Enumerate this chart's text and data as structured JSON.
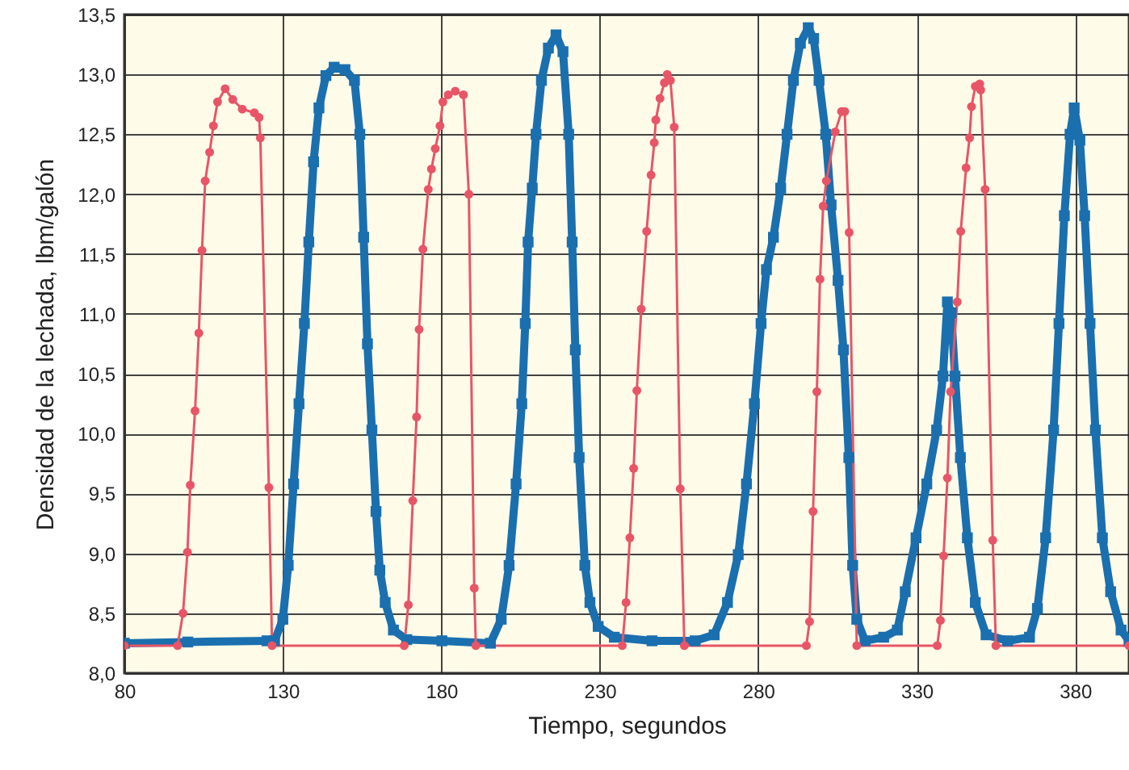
{
  "chart_data": {
    "type": "line",
    "xlabel": "Tiempo, segundos",
    "ylabel": "Densidad de la lechada, lbm/galón",
    "xlim": [
      80,
      397
    ],
    "xticks": [
      80,
      130,
      180,
      230,
      280,
      330,
      380
    ],
    "ylim": [
      8.0,
      13.5
    ],
    "yticks": [
      {
        "value": 8.0,
        "label": "8,0"
      },
      {
        "value": 8.5,
        "label": "8,5"
      },
      {
        "value": 9.0,
        "label": "9,0"
      },
      {
        "value": 9.5,
        "label": "9,5"
      },
      {
        "value": 10.0,
        "label": "10,0"
      },
      {
        "value": 10.5,
        "label": "10,5"
      },
      {
        "value": 11.0,
        "label": "11,0"
      },
      {
        "value": 11.5,
        "label": "11,5"
      },
      {
        "value": 12.0,
        "label": "12,0"
      },
      {
        "value": 12.5,
        "label": "12,5"
      },
      {
        "value": 13.0,
        "label": "13,0"
      },
      {
        "value": 13.5,
        "label": "13,5"
      }
    ],
    "grid": true,
    "series": [
      {
        "color": "#1a6faf",
        "marker": "square",
        "x": [
          80,
          100,
          125,
          127.4,
          130,
          131.7,
          133.4,
          135.1,
          136.8,
          138.2,
          139.7,
          141.4,
          143.6,
          146.2,
          149.6,
          152.6,
          154.3,
          155.5,
          156.7,
          158.1,
          159.4,
          160.6,
          162.3,
          164.9,
          169.1,
          180.2,
          195.5,
          198.9,
          201.4,
          203.6,
          205.4,
          206.5,
          207.4,
          208.7,
          209.9,
          211.6,
          213.8,
          216.2,
          218.4,
          220.2,
          221.3,
          222.3,
          223.5,
          225.3,
          226.9,
          229.5,
          234.6,
          246.5,
          260.1,
          266.1,
          270.3,
          273.7,
          276.3,
          278.8,
          280.9,
          282.6,
          284.8,
          287.1,
          289.1,
          291.1,
          293.3,
          295.8,
          297.5,
          299.2,
          301.3,
          303.0,
          305.2,
          306.9,
          308.6,
          309.8,
          311.1,
          313.7,
          319.6,
          323.9,
          326.4,
          329.8,
          333.2,
          336.3,
          338.3,
          339.7,
          340.9,
          342.1,
          343.8,
          346.0,
          348.5,
          351.9,
          358.7,
          365.6,
          368.1,
          370.7,
          373.2,
          374.9,
          376.6,
          378.4,
          379.7,
          381.5,
          383.0,
          384.7,
          386.4,
          388.6,
          391.2,
          394.5,
          397
        ],
        "values": [
          8.25,
          8.26,
          8.27,
          8.27,
          8.45,
          8.9,
          9.58,
          10.25,
          10.92,
          11.6,
          12.27,
          12.72,
          12.99,
          13.06,
          13.04,
          12.95,
          12.5,
          11.64,
          10.75,
          10.03,
          9.35,
          8.86,
          8.59,
          8.36,
          8.28,
          8.27,
          8.25,
          8.45,
          8.9,
          9.58,
          10.25,
          10.92,
          11.6,
          12.05,
          12.5,
          12.95,
          13.22,
          13.33,
          13.19,
          12.5,
          11.6,
          10.7,
          9.8,
          8.9,
          8.59,
          8.39,
          8.3,
          8.27,
          8.27,
          8.32,
          8.59,
          8.99,
          9.58,
          10.25,
          10.92,
          11.37,
          11.64,
          12.05,
          12.5,
          12.95,
          13.26,
          13.39,
          13.3,
          12.95,
          12.5,
          11.91,
          11.28,
          10.7,
          9.8,
          8.9,
          8.45,
          8.27,
          8.3,
          8.36,
          8.68,
          9.13,
          9.58,
          10.03,
          10.48,
          11.1,
          11.01,
          10.48,
          9.8,
          9.13,
          8.59,
          8.32,
          8.27,
          8.3,
          8.54,
          9.13,
          10.03,
          10.92,
          11.82,
          12.5,
          12.72,
          12.45,
          11.82,
          10.92,
          10.03,
          9.13,
          8.68,
          8.36,
          8.27
        ]
      },
      {
        "color": "#e85566",
        "marker": "circle",
        "x": [
          80,
          96.8,
          98.5,
          99.9,
          100.8,
          102.3,
          103.5,
          104.5,
          105.5,
          106.9,
          108.1,
          109.4,
          111.8,
          114.2,
          117.2,
          121,
          122.5,
          122.9,
          125.6,
          126.6,
          168.3,
          169.6,
          171.0,
          172.2,
          173.0,
          174.2,
          175.9,
          176.9,
          178.1,
          179.6,
          180.5,
          182.2,
          184.4,
          187.0,
          188.7,
          190.4,
          190.9,
          237.1,
          238.3,
          239.5,
          240.7,
          241.7,
          243.1,
          244.8,
          246.2,
          247.2,
          247.7,
          249.0,
          250.4,
          251.3,
          252.3,
          253.5,
          255.4,
          256.7,
          295.2,
          296.2,
          297.3,
          298.5,
          299.5,
          300.5,
          301.5,
          304.3,
          306.3,
          307.3,
          308.7,
          311.1,
          336.5,
          337.5,
          338.5,
          339.7,
          340.7,
          342.8,
          343.9,
          345.6,
          346.7,
          347.3,
          348.5,
          349.9,
          350.2,
          351.6,
          354.0,
          355,
          397
        ],
        "values": [
          8.23,
          8.23,
          8.5,
          9.01,
          9.57,
          10.19,
          10.84,
          11.53,
          12.11,
          12.35,
          12.57,
          12.77,
          12.88,
          12.79,
          12.71,
          12.68,
          12.64,
          12.47,
          9.55,
          8.23,
          8.23,
          8.57,
          9.44,
          10.14,
          10.87,
          11.54,
          12.04,
          12.21,
          12.38,
          12.57,
          12.77,
          12.83,
          12.86,
          12.83,
          12.0,
          8.71,
          8.23,
          8.23,
          8.59,
          9.13,
          9.71,
          10.36,
          11.04,
          11.69,
          12.16,
          12.43,
          12.62,
          12.8,
          12.93,
          13.0,
          12.95,
          12.56,
          9.54,
          8.23,
          8.23,
          8.43,
          9.35,
          10.35,
          11.29,
          11.9,
          12.11,
          12.52,
          12.69,
          12.69,
          11.68,
          8.23,
          8.23,
          8.44,
          8.98,
          9.63,
          10.35,
          11.1,
          11.69,
          12.22,
          12.47,
          12.73,
          12.9,
          12.92,
          12.87,
          12.04,
          9.11,
          8.23,
          8.23
        ]
      }
    ]
  }
}
